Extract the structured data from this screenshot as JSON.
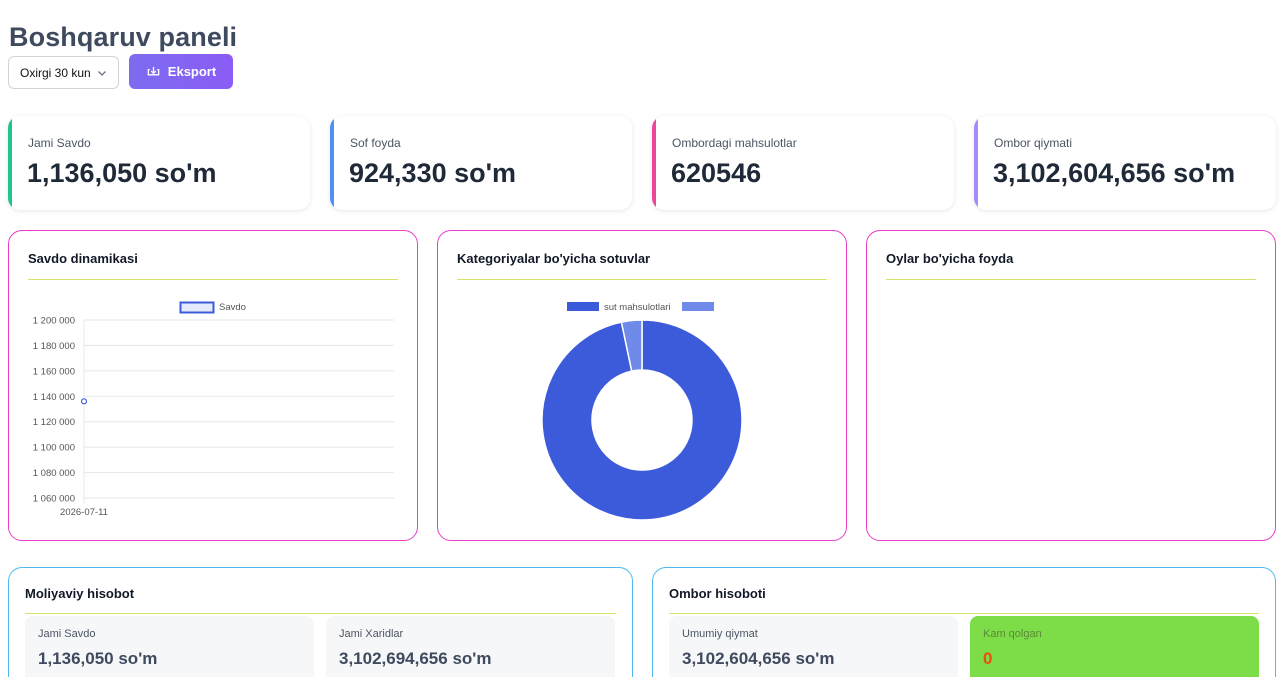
{
  "header": {
    "title": "Boshqaruv paneli",
    "period_select": "Oxirgi 30 kun",
    "export_label": "Eksport"
  },
  "stats": [
    {
      "label": "Jami Savdo",
      "value": "1,136,050 so'm",
      "color": "#22c38e"
    },
    {
      "label": "Sof foyda",
      "value": "924,330 so'm",
      "color": "#4f8ff7"
    },
    {
      "label": "Ombordagi mahsulotlar",
      "value": "620546",
      "color": "#ec4899"
    },
    {
      "label": "Ombor qiymati",
      "value": "3,102,604,656 so'm",
      "color": "#a78bfa"
    }
  ],
  "charts": {
    "sales": {
      "title": "Savdo dinamikasi"
    },
    "categories": {
      "title": "Kategoriyalar bo'yicha sotuvlar"
    },
    "profit": {
      "title": "Oylar bo'yicha foyda"
    }
  },
  "chart_data": [
    {
      "type": "line",
      "title": "Savdo dinamikasi",
      "x": [
        "2026-07-11"
      ],
      "series": [
        {
          "name": "Savdo",
          "values": [
            1136050
          ]
        }
      ],
      "yticks": [
        "1 200 000",
        "1 180 000",
        "1 160 000",
        "1 140 000",
        "1 120 000",
        "1 100 000",
        "1 080 000",
        "1 060 000"
      ],
      "ylim": [
        1060000,
        1200000
      ],
      "grid": true,
      "legend": "top",
      "color": "#3b5bdb"
    },
    {
      "type": "pie",
      "title": "Kategoriyalar bo'yicha sotuvlar",
      "categories": [
        "sut mahsulotlari",
        ""
      ],
      "values": [
        96.7,
        3.3
      ],
      "colors": [
        "#3b5bdb",
        "#6f8ae8"
      ],
      "legend": "top"
    },
    {
      "type": "bar",
      "title": "Oylar bo'yicha foyda",
      "categories": [],
      "values": []
    }
  ],
  "reports": {
    "finance": {
      "title": "Moliyaviy hisobot",
      "items": [
        {
          "label": "Jami Savdo",
          "value": "1,136,050 so'm"
        },
        {
          "label": "Jami Xaridlar",
          "value": "3,102,694,656 so'm"
        }
      ]
    },
    "warehouse": {
      "title": "Ombor hisoboti",
      "items": [
        {
          "label": "Umumiy qiymat",
          "value": "3,102,604,656 so'm"
        },
        {
          "label": "Kam qolgan",
          "value": "0"
        }
      ]
    }
  }
}
